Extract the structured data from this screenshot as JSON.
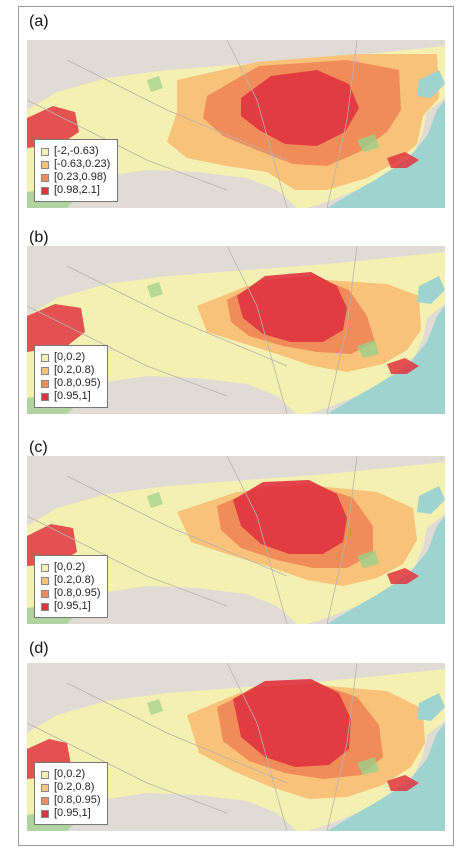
{
  "panels": [
    {
      "label": "(a)",
      "legend": [
        {
          "text": "[-2,-0.63)",
          "color": "#f3f0b2"
        },
        {
          "text": "[-0.63,0.23)",
          "color": "#f8c27a"
        },
        {
          "text": "[0.23,0.98)",
          "color": "#ef8c59"
        },
        {
          "text": "[0.98,2.1]",
          "color": "#df3540"
        }
      ],
      "style": "a"
    },
    {
      "label": "(b)",
      "legend": [
        {
          "text": "[0,0.2)",
          "color": "#f3f0b2"
        },
        {
          "text": "[0.2,0.8)",
          "color": "#f8c27a"
        },
        {
          "text": "[0.8,0.95)",
          "color": "#ef8c59"
        },
        {
          "text": "[0.95,1]",
          "color": "#df3540"
        }
      ],
      "style": "b"
    },
    {
      "label": "(c)",
      "legend": [
        {
          "text": "[0,0.2)",
          "color": "#f3f0b2"
        },
        {
          "text": "[0.2,0.8)",
          "color": "#f8c27a"
        },
        {
          "text": "[0.8,0.95)",
          "color": "#ef8c59"
        },
        {
          "text": "[0.95,1]",
          "color": "#df3540"
        }
      ],
      "style": "c"
    },
    {
      "label": "(d)",
      "legend": [
        {
          "text": "[0,0.2)",
          "color": "#f3f0b2"
        },
        {
          "text": "[0.2,0.8)",
          "color": "#f8c27a"
        },
        {
          "text": "[0.8,0.95)",
          "color": "#ef8c59"
        },
        {
          "text": "[0.95,1]",
          "color": "#df3540"
        }
      ],
      "style": "d"
    }
  ],
  "colors": {
    "ocean": "#9fd3cf",
    "land": "#e0dcd5",
    "forest": "#9bcf8a",
    "low": "#f3f0b2",
    "mid": "#f8c27a",
    "high": "#ef8c59",
    "top": "#df3540"
  }
}
